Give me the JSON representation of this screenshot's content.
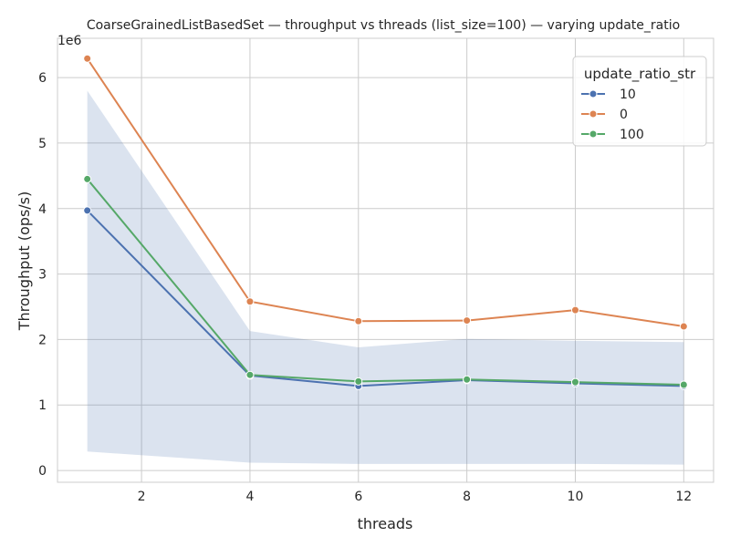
{
  "chart_data": {
    "type": "line",
    "title": "CoarseGrainedListBasedSet — throughput vs threads (list_size=100) — varying update_ratio",
    "xlabel": "threads",
    "ylabel": "Throughput (ops/s)",
    "y_offset_text": "1e6",
    "xlim": [
      0.45,
      12.55
    ],
    "ylim": [
      -0.18,
      6.6
    ],
    "y_scale_note": "values in units of 1e6 ops/s",
    "x_ticks": [
      2,
      4,
      6,
      8,
      10,
      12
    ],
    "y_ticks": [
      0,
      1,
      2,
      3,
      4,
      5,
      6
    ],
    "grid": true,
    "legend": {
      "title": "update_ratio_str",
      "placement": "top-right"
    },
    "series": [
      {
        "name": "10",
        "color": "#4c72b0",
        "x": [
          1,
          4,
          6,
          8,
          10,
          12
        ],
        "y": [
          3.97,
          1.45,
          1.29,
          1.38,
          1.33,
          1.29
        ]
      },
      {
        "name": "0",
        "color": "#dd8452",
        "x": [
          1,
          4,
          6,
          8,
          10,
          12
        ],
        "y": [
          6.29,
          2.58,
          2.28,
          2.29,
          2.45,
          2.2
        ]
      },
      {
        "name": "100",
        "color": "#55a868",
        "x": [
          1,
          4,
          6,
          8,
          10,
          12
        ],
        "y": [
          4.45,
          1.46,
          1.36,
          1.39,
          1.35,
          1.31
        ]
      }
    ],
    "confidence_band": {
      "series": "10",
      "color": "#4c72b0",
      "opacity": 0.2,
      "x": [
        1,
        4,
        6,
        8,
        10,
        12
      ],
      "lower": [
        0.29,
        0.12,
        0.1,
        0.1,
        0.1,
        0.09
      ],
      "upper": [
        5.8,
        2.13,
        1.88,
        2.01,
        1.98,
        1.96
      ]
    }
  }
}
